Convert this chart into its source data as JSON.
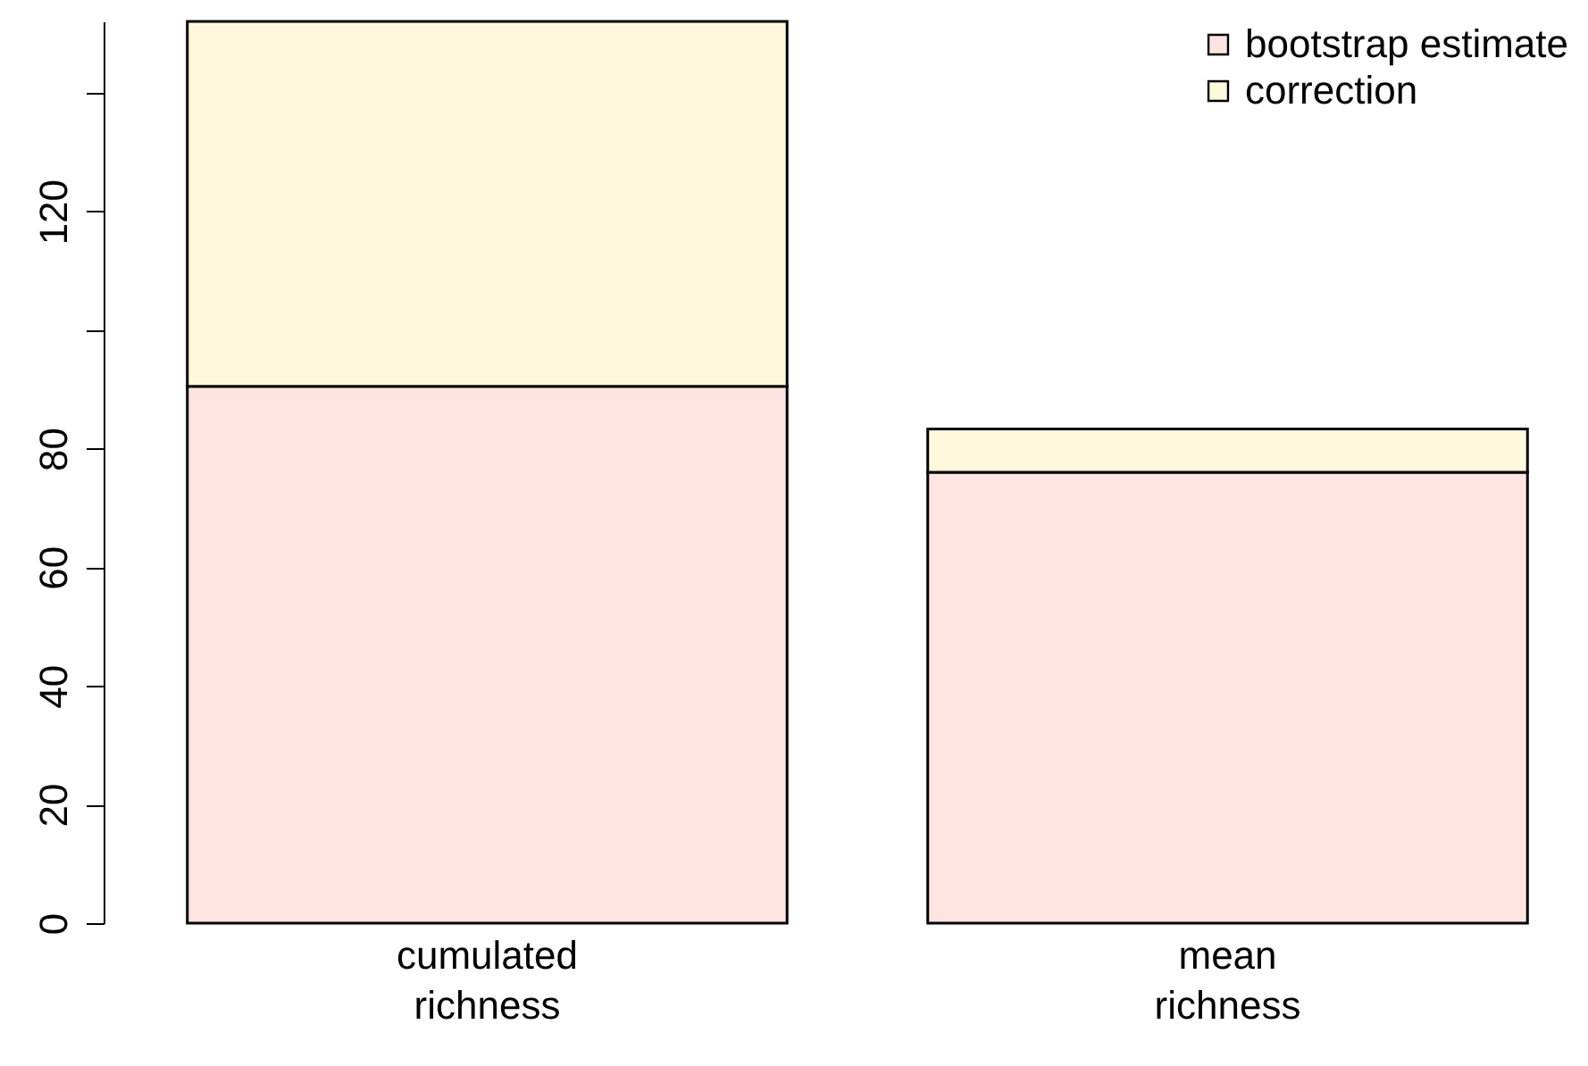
{
  "chart_data": {
    "type": "bar",
    "stacked": true,
    "categories": [
      "cumulated richness",
      "mean richness"
    ],
    "series": [
      {
        "name": "bootstrap estimate",
        "color": "#ffe4e1",
        "values": [
          90.5,
          76
        ]
      },
      {
        "name": "correction",
        "color": "#fff8dc",
        "values": [
          61.5,
          7.3
        ]
      }
    ],
    "ylim": [
      0,
      152
    ],
    "yticks": [
      0,
      20,
      40,
      60,
      80,
      {
        "value": 100,
        "label": null
      },
      120,
      {
        "value": 140,
        "label": null
      }
    ],
    "legend": "top right"
  }
}
